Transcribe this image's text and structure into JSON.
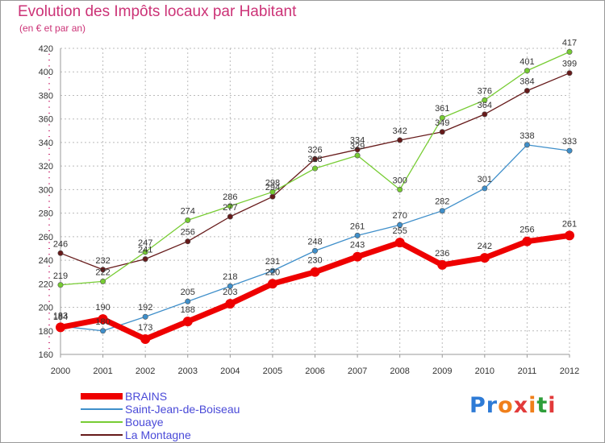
{
  "header": {
    "title": "Evolution des Impôts locaux par Habitant",
    "subtitle": "(en € et par an)"
  },
  "colors": {
    "title": "#cc3377",
    "legend_text": "#4a4ad8",
    "grid": "#bbbbbb",
    "axis": "#999999",
    "tick_marks": "#cc3377",
    "labels": "#333333"
  },
  "logo": {
    "text": "Proxiti",
    "letter_colors": [
      "#2e7bd6",
      "#2e7bd6",
      "#f07f1a",
      "#e23a3a",
      "#f07f1a",
      "#2e9e3a",
      "#e23a3a"
    ]
  },
  "chart_data": {
    "type": "line",
    "title": "Evolution des Impôts locaux par Habitant",
    "subtitle": "(en € et par an)",
    "xlabel": "",
    "ylabel": "",
    "ylim": [
      160,
      420
    ],
    "yticks": [
      160,
      180,
      200,
      220,
      240,
      260,
      280,
      300,
      320,
      340,
      360,
      380,
      400,
      420
    ],
    "grid": true,
    "legend_position": "bottom-left",
    "x": [
      "2000",
      "2001",
      "2002",
      "2003",
      "2004",
      "2005",
      "2006",
      "2007",
      "2008",
      "2009",
      "2010",
      "2011",
      "2012"
    ],
    "series": [
      {
        "name": "BRAINS",
        "color": "#ee0000",
        "values": [
          183,
          190,
          173,
          188,
          203,
          220,
          230,
          243,
          255,
          236,
          242,
          256,
          261
        ]
      },
      {
        "name": "Saint-Jean-de-Boiseau",
        "color": "#3f8fca",
        "values": [
          184,
          180,
          192,
          205,
          218,
          231,
          248,
          261,
          270,
          282,
          301,
          338,
          333
        ]
      },
      {
        "name": "Bouaye",
        "color": "#77cc33",
        "values": [
          219,
          222,
          247,
          274,
          286,
          298,
          318,
          329,
          300,
          361,
          376,
          401,
          417
        ]
      },
      {
        "name": "La Montagne",
        "color": "#661a1a",
        "values": [
          246,
          232,
          241,
          256,
          277,
          294,
          326,
          334,
          342,
          349,
          364,
          384,
          399
        ]
      }
    ]
  }
}
